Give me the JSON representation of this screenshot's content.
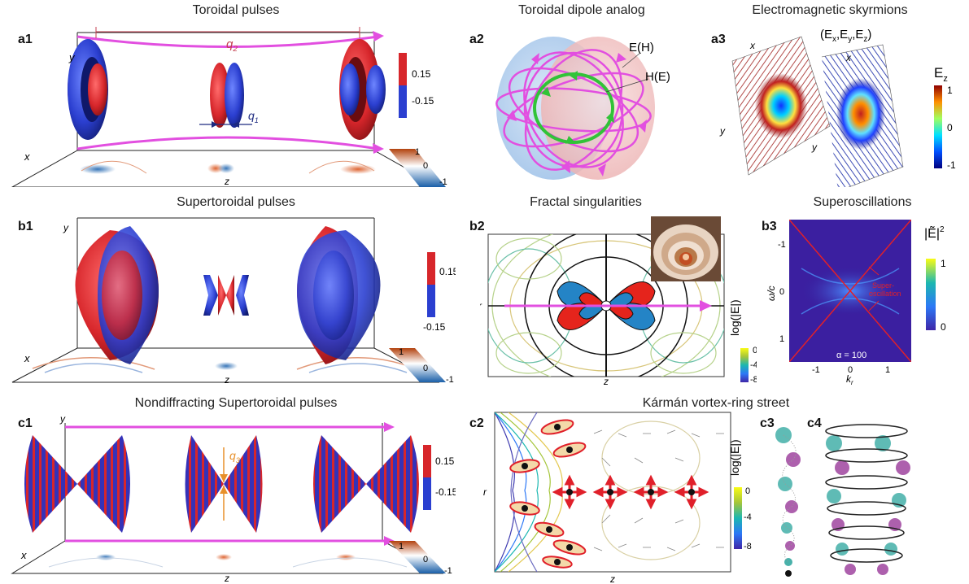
{
  "colors": {
    "red": "#d7262b",
    "blue": "#2b3fd0",
    "magenta": "#e24fe0",
    "orange": "#e8902a",
    "green": "#31c338",
    "navy": "#1c2ea8"
  },
  "panels": {
    "a1": {
      "label": "a1",
      "title": "Toroidal pulses",
      "axis_y": "y",
      "axis_x": "x",
      "axis_z": "z",
      "q2": "q",
      "q2_sub": "2",
      "q1": "q",
      "q1_sub": "1",
      "colorbar_top": "0.15",
      "colorbar_bottom": "-0.15",
      "floor_bar_top": "1",
      "floor_bar_mid": "0",
      "floor_bar_bottom": "-1"
    },
    "a2": {
      "label": "a2",
      "title": "Toroidal dipole analog",
      "label_e": "E(H)",
      "label_h": "H(E)"
    },
    "a3": {
      "label": "a3",
      "title": "Electromagnetic skyrmions",
      "field_label": "(E",
      "field_x": "x",
      "field_y": "y",
      "field_z": "z",
      "axis_x1": "x",
      "axis_y1": "y",
      "axis_x2": "x",
      "axis_y2": "y",
      "cbar_title": "E",
      "cbar_title_sub": "z",
      "cbar_top": "1",
      "cbar_mid": "0",
      "cbar_bottom": "-1"
    },
    "b1": {
      "label": "b1",
      "title": "Supertoroidal pulses",
      "axis_y": "y",
      "axis_x": "x",
      "axis_z": "z",
      "colorbar_top": "0.15",
      "colorbar_bottom": "-0.15",
      "floor_bar_top": "1",
      "floor_bar_mid": "0",
      "floor_bar_bottom": "-1"
    },
    "b2": {
      "label": "b2",
      "title": "Fractal singularities",
      "axis_r": "r",
      "axis_z": "z",
      "cbar_title": "log(|E|)",
      "cbar_top": "0",
      "cbar_mid": "-4",
      "cbar_bottom": "-8"
    },
    "b3": {
      "label": "b3",
      "title": "Superoscillations",
      "ylabel": "ω/c",
      "xlabel": "k",
      "xlabel_sub": "r",
      "yticks": [
        "-1",
        "0",
        "1"
      ],
      "xticks": [
        "-1",
        "0",
        "1"
      ],
      "annotation_1": "Super-",
      "annotation_2": "oscillation",
      "alpha": "α = 100",
      "cbar_title": "|Ẽ|",
      "cbar_title_sup": "2",
      "cbar_top": "1",
      "cbar_bottom": "0"
    },
    "c1": {
      "label": "c1",
      "title": "Nondiffracting Supertoroidal pulses",
      "axis_y": "y",
      "axis_x": "x",
      "axis_z": "z",
      "q3": "q",
      "q3_sub": "3",
      "colorbar_top": "0.15",
      "colorbar_bottom": "-0.15",
      "floor_bar_top": "1",
      "floor_bar_mid": "0",
      "floor_bar_bottom": "-1"
    },
    "c2": {
      "label": "c2",
      "title": "Kármán vortex-ring street",
      "axis_r": "r",
      "axis_z": "z",
      "cbar_title": "log(|E|)",
      "cbar_top": "0",
      "cbar_mid": "-4",
      "cbar_bottom": "-8"
    },
    "c3": {
      "label": "c3"
    },
    "c4": {
      "label": "c4"
    }
  }
}
